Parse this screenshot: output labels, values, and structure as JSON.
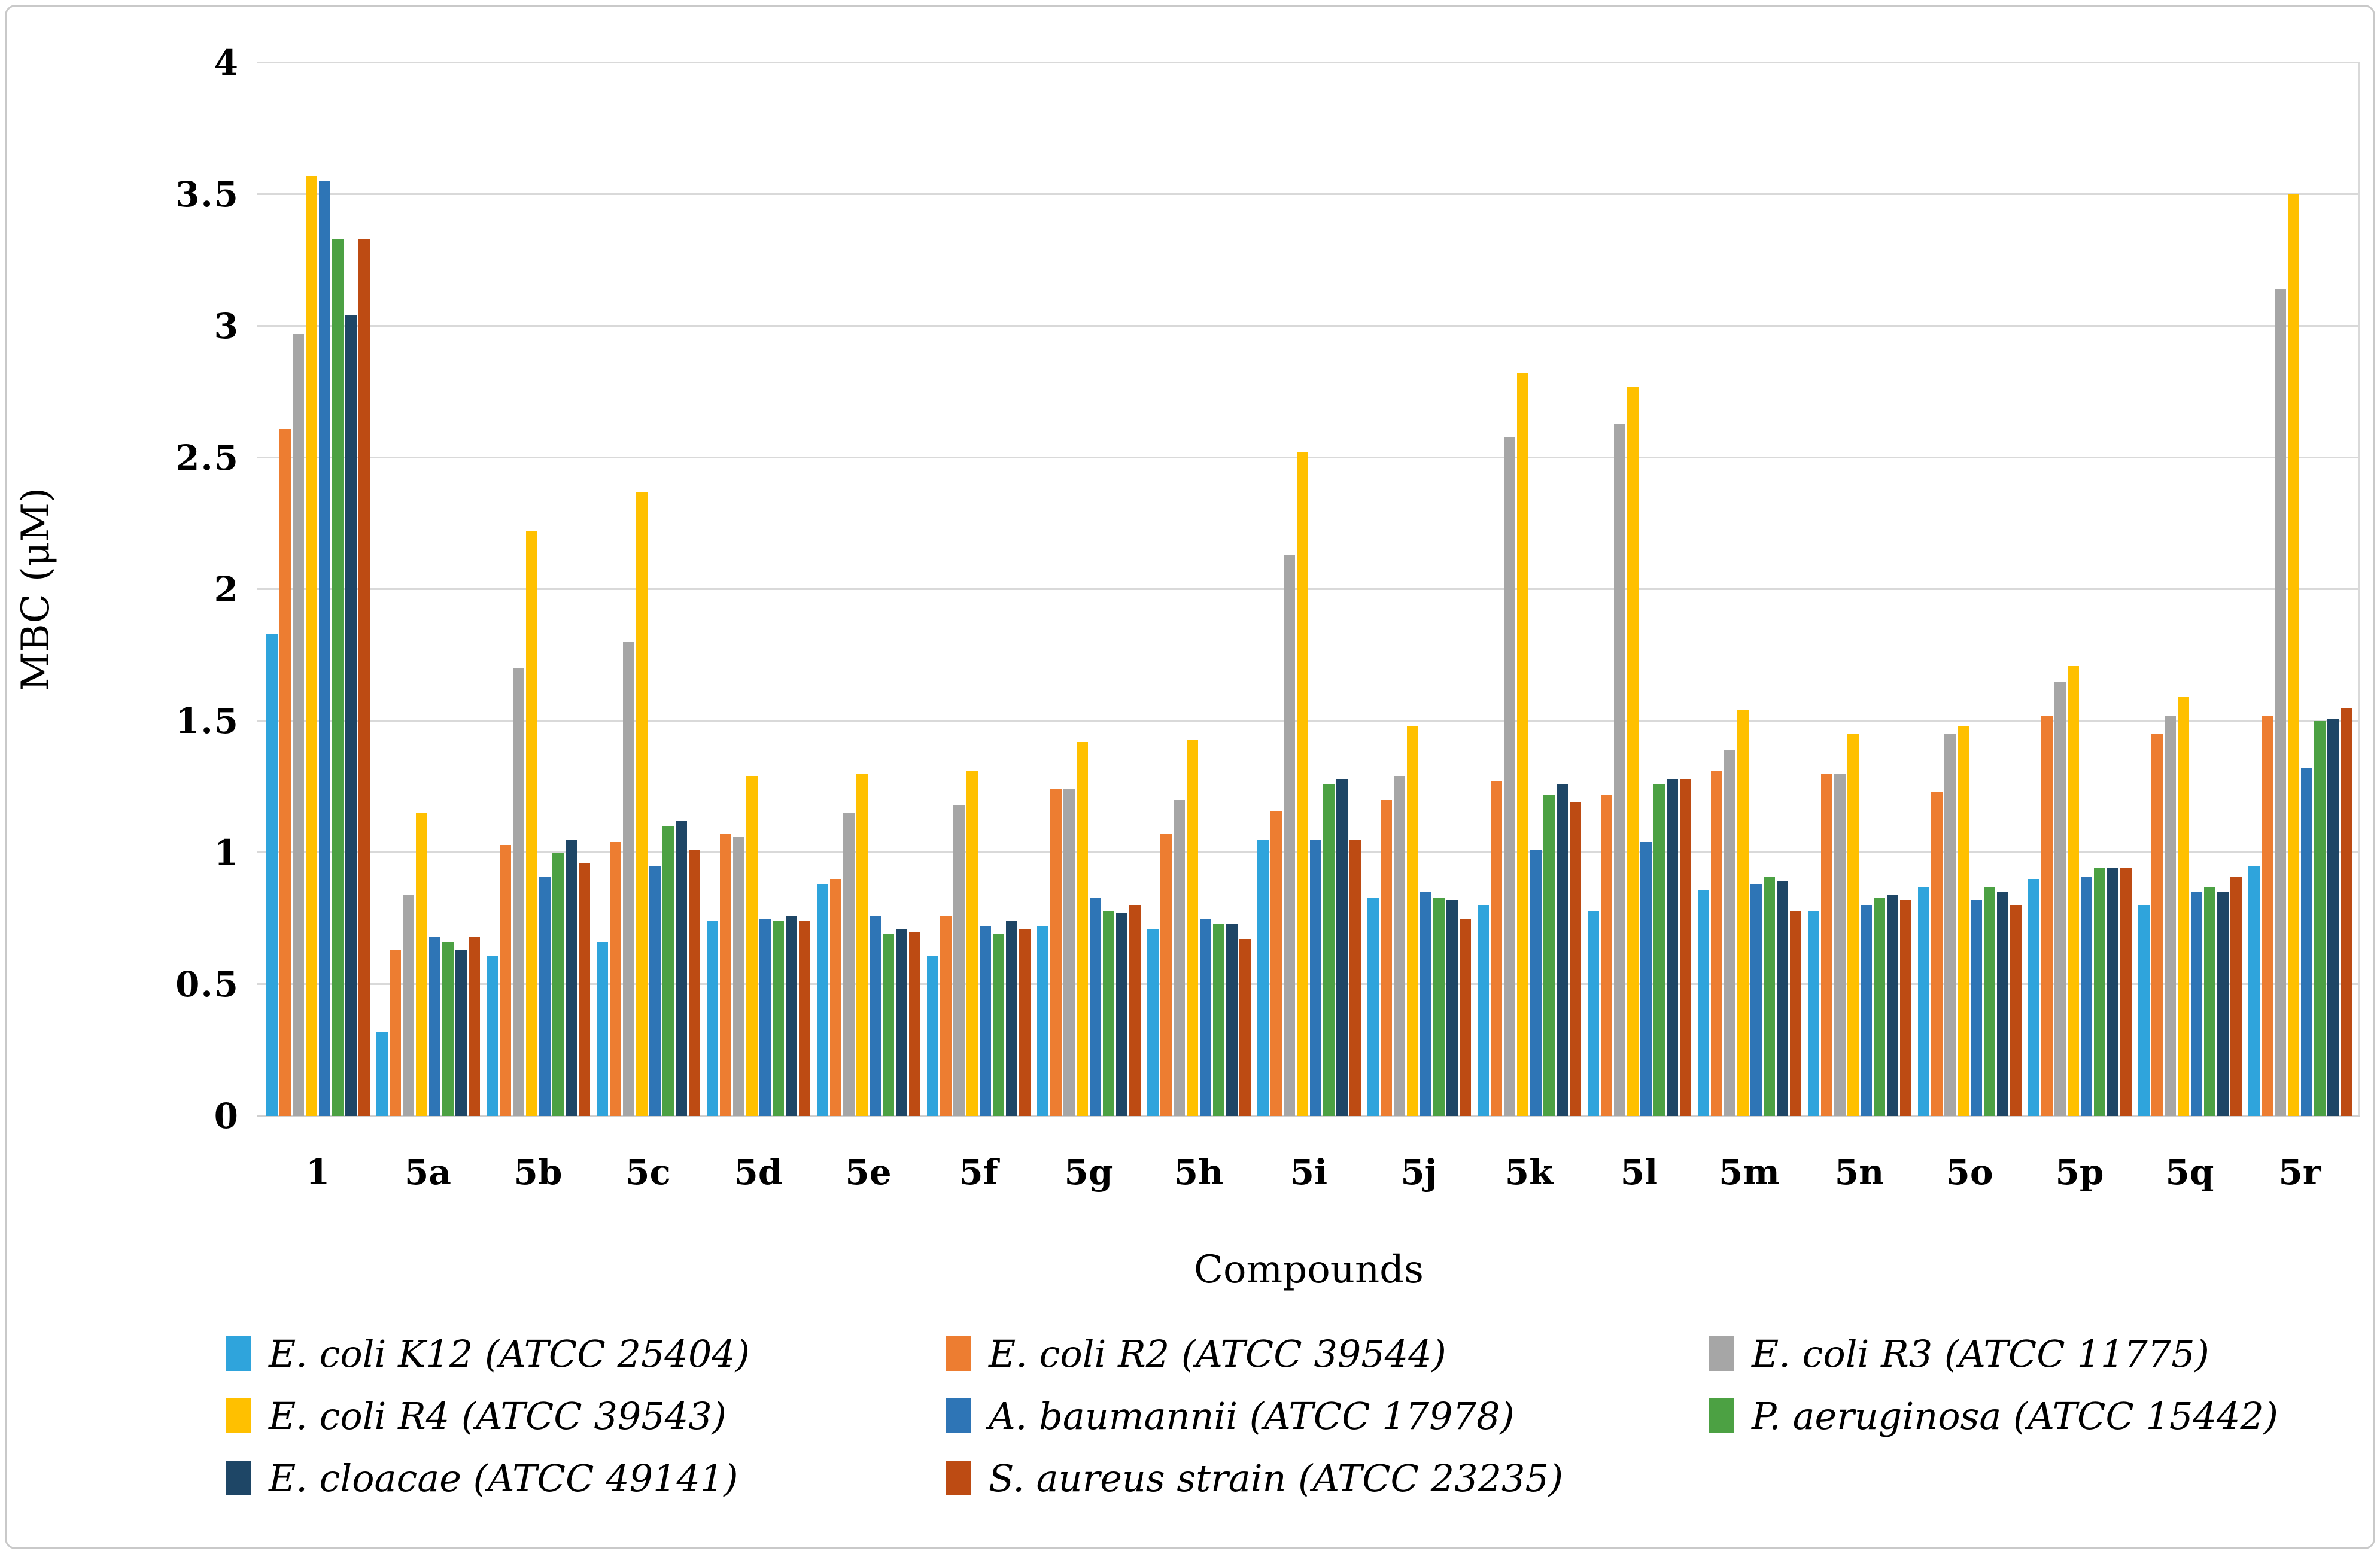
{
  "chart_data": {
    "type": "bar",
    "title": "",
    "xlabel": "Compounds",
    "ylabel": "MBC (μM)",
    "ylim": [
      0,
      4
    ],
    "ytick_step": 0.5,
    "yticks": [
      "0",
      "0.5",
      "1",
      "1.5",
      "2",
      "2.5",
      "3",
      "3.5",
      "4"
    ],
    "grid": "horizontal-only",
    "legend_position": "bottom",
    "categories": [
      "1",
      "5a",
      "5b",
      "5c",
      "5d",
      "5e",
      "5f",
      "5g",
      "5h",
      "5i",
      "5j",
      "5k",
      "5l",
      "5m",
      "5n",
      "5o",
      "5p",
      "5q",
      "5r"
    ],
    "series": [
      {
        "name": "E. coli K12 (ATCC 25404)",
        "color": "#2FA4DC",
        "values": [
          1.83,
          0.32,
          0.61,
          0.66,
          0.74,
          0.88,
          0.61,
          0.72,
          0.71,
          1.05,
          0.83,
          0.8,
          0.78,
          0.86,
          0.78,
          0.87,
          0.9,
          0.8,
          0.95
        ]
      },
      {
        "name": "E. coli R2 (ATCC 39544)",
        "color": "#ED7D31",
        "values": [
          2.61,
          0.63,
          1.03,
          1.04,
          1.07,
          0.9,
          0.76,
          1.24,
          1.07,
          1.16,
          1.2,
          1.27,
          1.22,
          1.31,
          1.3,
          1.23,
          1.52,
          1.45,
          1.52
        ]
      },
      {
        "name": "E. coli R3 (ATCC 11775)",
        "color": "#A6A6A6",
        "values": [
          2.97,
          0.84,
          1.7,
          1.8,
          1.06,
          1.15,
          1.18,
          1.24,
          1.2,
          2.13,
          1.29,
          2.58,
          2.63,
          1.39,
          1.3,
          1.45,
          1.65,
          1.52,
          3.14
        ]
      },
      {
        "name": "E. coli R4 (ATCC 39543)",
        "color": "#FFC000",
        "values": [
          3.57,
          1.15,
          2.22,
          2.37,
          1.29,
          1.3,
          1.31,
          1.42,
          1.43,
          2.52,
          1.48,
          2.82,
          2.77,
          1.54,
          1.45,
          1.48,
          1.71,
          1.59,
          3.5
        ]
      },
      {
        "name": "A. baumannii (ATCC 17978)",
        "color": "#2E75B6",
        "values": [
          3.55,
          0.68,
          0.91,
          0.95,
          0.75,
          0.76,
          0.72,
          0.83,
          0.75,
          1.05,
          0.85,
          1.01,
          1.04,
          0.88,
          0.8,
          0.82,
          0.91,
          0.85,
          1.32
        ]
      },
      {
        "name": "P. aeruginosa (ATCC 15442)",
        "color": "#4CA143",
        "values": [
          3.33,
          0.66,
          1.0,
          1.1,
          0.74,
          0.69,
          0.69,
          0.78,
          0.73,
          1.26,
          0.83,
          1.22,
          1.26,
          0.91,
          0.83,
          0.87,
          0.94,
          0.87,
          1.5
        ]
      },
      {
        "name": "E. cloacae (ATCC 49141)",
        "color": "#1E4666",
        "values": [
          3.04,
          0.63,
          1.05,
          1.12,
          0.76,
          0.71,
          0.74,
          0.77,
          0.73,
          1.28,
          0.82,
          1.26,
          1.28,
          0.89,
          0.84,
          0.85,
          0.94,
          0.85,
          1.51
        ]
      },
      {
        "name": "S. aureus strain (ATCC 23235)",
        "color": "#BD4B13",
        "values": [
          3.33,
          0.68,
          0.96,
          1.01,
          0.74,
          0.7,
          0.71,
          0.8,
          0.67,
          1.05,
          0.75,
          1.19,
          1.28,
          0.78,
          0.82,
          0.8,
          0.94,
          0.91,
          1.55
        ]
      }
    ]
  }
}
